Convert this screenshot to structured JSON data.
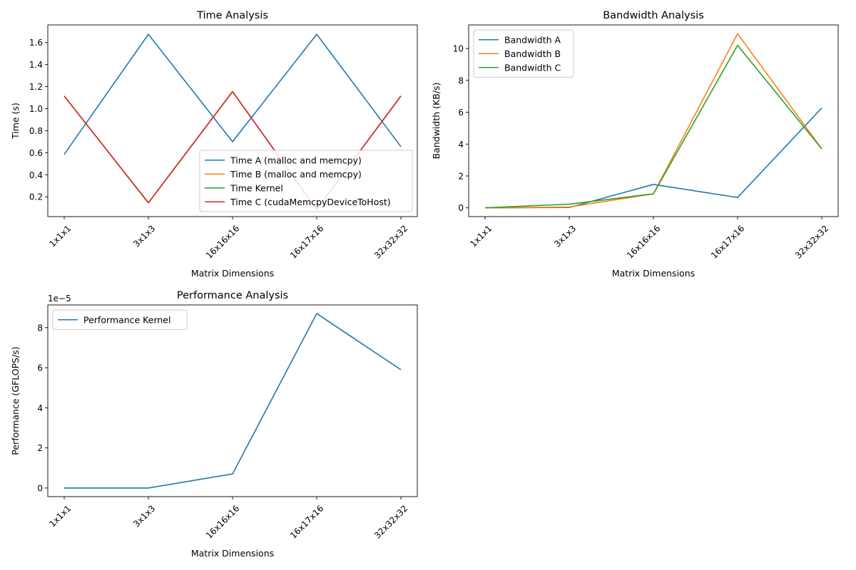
{
  "chart_data": [
    {
      "id": "time",
      "type": "line",
      "title": "Time Analysis",
      "xlabel": "Matrix Dimensions",
      "ylabel": "Time (s)",
      "categories": [
        "1x1x1",
        "3x1x3",
        "16x16x16",
        "16x17x16",
        "32x32x32"
      ],
      "ylim": [
        0.02,
        1.76
      ],
      "yticks": [
        0.2,
        0.4,
        0.6,
        0.8,
        1.0,
        1.2,
        1.4,
        1.6
      ],
      "ytick_labels": [
        "0.2",
        "0.4",
        "0.6",
        "0.8",
        "1.0",
        "1.2",
        "1.4",
        "1.6"
      ],
      "grid": false,
      "legend_position": "lower-right",
      "series": [
        {
          "name": "Time A (malloc and memcpy)",
          "color": "#1f77b4",
          "values": [
            0.585,
            1.675,
            0.7,
            1.675,
            0.655
          ]
        },
        {
          "name": "Time B (malloc and memcpy)",
          "color": "#ff7f0e",
          "values": [
            1.115,
            0.145,
            1.155,
            0.085,
            1.115
          ]
        },
        {
          "name": "Time Kernel",
          "color": "#2ca02c",
          "values": [
            1.115,
            0.145,
            1.155,
            0.085,
            1.115
          ]
        },
        {
          "name": "Time C (cudaMemcpyDeviceToHost)",
          "color": "#d62728",
          "values": [
            1.115,
            0.145,
            1.155,
            0.085,
            1.115
          ]
        }
      ]
    },
    {
      "id": "bandwidth",
      "type": "line",
      "title": "Bandwidth Analysis",
      "xlabel": "Matrix Dimensions",
      "ylabel": "Bandwidth (KB/s)",
      "categories": [
        "1x1x1",
        "3x1x3",
        "16x16x16",
        "16x17x16",
        "32x32x32"
      ],
      "ylim": [
        -0.55,
        11.48
      ],
      "yticks": [
        0,
        2,
        4,
        6,
        8,
        10
      ],
      "ytick_labels": [
        "0",
        "2",
        "4",
        "6",
        "8",
        "10"
      ],
      "grid": false,
      "legend_position": "upper-left",
      "series": [
        {
          "name": "Bandwidth A",
          "color": "#1f77b4",
          "values": [
            0.0,
            0.02,
            1.47,
            0.65,
            6.27
          ]
        },
        {
          "name": "Bandwidth B",
          "color": "#ff7f0e",
          "values": [
            0.0,
            0.05,
            0.88,
            10.93,
            3.7
          ]
        },
        {
          "name": "Bandwidth C",
          "color": "#2ca02c",
          "values": [
            0.0,
            0.23,
            0.88,
            10.2,
            3.7
          ]
        }
      ]
    },
    {
      "id": "performance",
      "type": "line",
      "title": "Performance Analysis",
      "xlabel": "Matrix Dimensions",
      "ylabel": "Performance (GFLOPS/s)",
      "y_offset_label": "1e−5",
      "categories": [
        "1x1x1",
        "3x1x3",
        "16x16x16",
        "16x17x16",
        "32x32x32"
      ],
      "ylim": [
        -0.43,
        9.13
      ],
      "yticks": [
        0,
        2,
        4,
        6,
        8
      ],
      "ytick_labels": [
        "0",
        "2",
        "4",
        "6",
        "8"
      ],
      "grid": false,
      "legend_position": "upper-left",
      "series": [
        {
          "name": "Performance Kernel",
          "color": "#1f77b4",
          "values": [
            0.0,
            0.0,
            0.7,
            8.7,
            5.9
          ]
        }
      ]
    }
  ]
}
